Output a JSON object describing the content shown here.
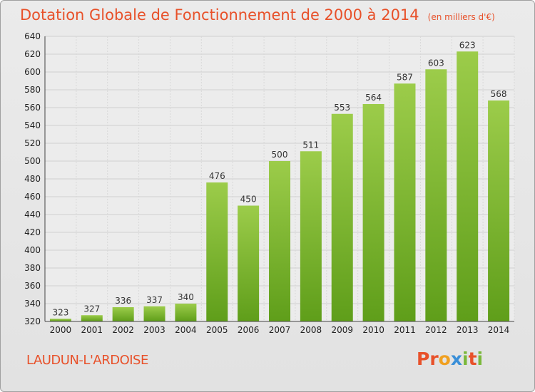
{
  "chart_data": {
    "type": "bar",
    "title": "Dotation Globale de Fonctionnement de 2000 à 2014",
    "unit_note": "(en milliers d'€)",
    "categories": [
      "2000",
      "2001",
      "2002",
      "2003",
      "2004",
      "2005",
      "2006",
      "2007",
      "2008",
      "2009",
      "2010",
      "2011",
      "2012",
      "2013",
      "2014"
    ],
    "values": [
      323,
      327,
      336,
      337,
      340,
      476,
      450,
      500,
      511,
      553,
      564,
      587,
      603,
      623,
      568
    ],
    "ylim": [
      320,
      640
    ],
    "yticks": [
      320,
      340,
      360,
      380,
      400,
      420,
      440,
      460,
      480,
      500,
      520,
      540,
      560,
      580,
      600,
      620,
      640
    ],
    "grid": true,
    "bar_color_top": "#9ccc4a",
    "bar_color_bottom": "#5f9e1a"
  },
  "footer": {
    "commune": "LAUDUN-L'ARDOISE",
    "logo": "Proxiti"
  },
  "colors": {
    "title": "#e8512a",
    "logo_letters": [
      "#e8512a",
      "#e8512a",
      "#f0a020",
      "#3a8fd8",
      "#7ab83a",
      "#e8512a",
      "#7ab83a"
    ]
  }
}
